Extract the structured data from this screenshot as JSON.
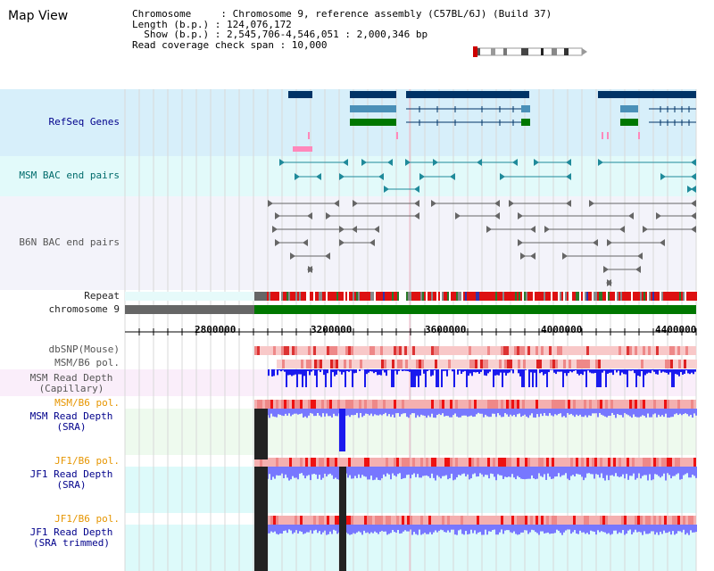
{
  "view": {
    "title": "Map View"
  },
  "info": {
    "line1": "Chromosome     : Chromosome 9, reference assembly (C57BL/6J) (Build 37)",
    "line2": "Length (b.p.) : 124,076,172",
    "line3": "  Show (b.p.) : 2,545,706-4,546,051 : 2,000,346 bp",
    "line4": "Read coverage check span : 10,000"
  },
  "tracks": {
    "refseq": "RefSeq Genes",
    "msm_bac": "MSM BAC end pairs",
    "b6n_bac": "B6N BAC end pairs",
    "repeat": "Repeat",
    "chromosome": "chromosome 9",
    "dbsnp": "dbSNP(Mouse)",
    "msm_b6_pol_1": "MSM/B6 pol.",
    "msm_depth_cap": "MSM Read Depth\n(Capillary)",
    "msm_b6_pol_2": "MSM/B6 pol.",
    "msm_depth_sra": "MSM Read Depth\n(SRA)",
    "jf1_b6_pol_1": "JF1/B6 pol.",
    "jf1_depth_sra": "JF1 Read Depth\n(SRA)",
    "jf1_b6_pol_2": "JF1/B6 pol.",
    "jf1_depth_trim": "JF1 Read Depth\n(SRA trimmed)"
  },
  "axis": {
    "ticks": [
      "2800000",
      "3200000",
      "3600000",
      "4000000",
      "4400000"
    ]
  },
  "colors": {
    "refseq_bg": "#d7effa",
    "msm_bac_bg": "#e2fafa",
    "b6n_bac_bg": "#f3f3fa",
    "gene_dark": "#003366",
    "gene_mid": "#4a90b8",
    "gene_green": "#007700",
    "chrom_green": "#007700",
    "depth_blue": "#1a1aee",
    "depth_light": "#7777ff"
  }
}
